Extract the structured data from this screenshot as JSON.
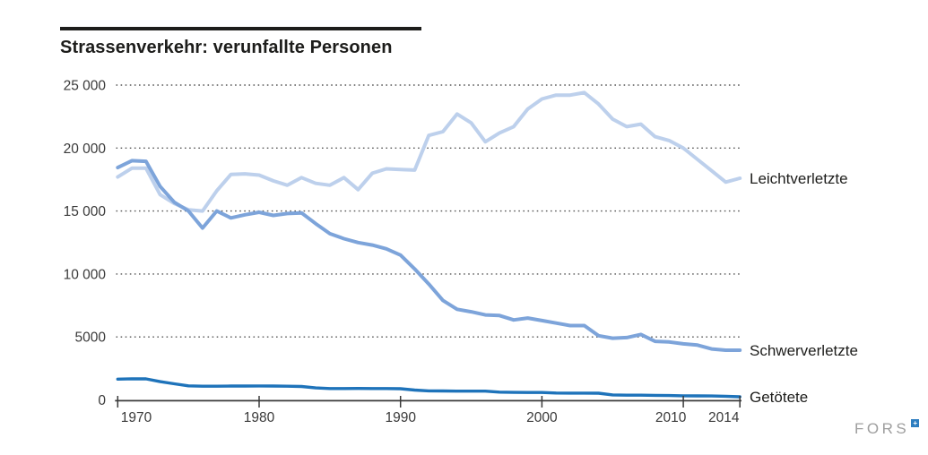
{
  "header": {
    "title": "Strassenverkehr: verunfallte Personen"
  },
  "footer": {
    "logo_text": "FORS"
  },
  "chart_data": {
    "type": "line",
    "title": "Strassenverkehr: verunfallte Personen",
    "grid": "horizontal-dotted",
    "legend_position": "right-of-line-ends",
    "ylim": [
      0,
      25000
    ],
    "xlim": [
      1970,
      2014
    ],
    "x": [
      1970,
      1971,
      1972,
      1973,
      1974,
      1975,
      1976,
      1977,
      1978,
      1979,
      1980,
      1981,
      1982,
      1983,
      1984,
      1985,
      1986,
      1987,
      1988,
      1989,
      1990,
      1991,
      1992,
      1993,
      1994,
      1995,
      1996,
      1997,
      1998,
      1999,
      2000,
      2001,
      2002,
      2003,
      2004,
      2005,
      2006,
      2007,
      2008,
      2009,
      2010,
      2011,
      2012,
      2013,
      2014
    ],
    "series": [
      {
        "name": "Leichtverletzte",
        "color": "#bdd0ec",
        "values": [
          17700,
          18400,
          18400,
          16300,
          15600,
          15100,
          15000,
          16600,
          17900,
          17950,
          17850,
          17400,
          17050,
          17650,
          17200,
          17050,
          17650,
          16700,
          18000,
          18350,
          18300,
          18250,
          21000,
          21300,
          22700,
          22000,
          20500,
          21200,
          21700,
          23100,
          23900,
          24200,
          24200,
          24400,
          23500,
          22300,
          21700,
          21900,
          20900,
          20600,
          20000,
          19100,
          18200,
          17300,
          17600
        ]
      },
      {
        "name": "Schwerverletzte",
        "color": "#7da4da",
        "values": [
          18450,
          19000,
          18950,
          16950,
          15700,
          15000,
          13650,
          15000,
          14450,
          14700,
          14900,
          14650,
          14800,
          14850,
          14000,
          13200,
          12800,
          12500,
          12300,
          12000,
          11500,
          10400,
          9200,
          7900,
          7200,
          7000,
          6750,
          6700,
          6350,
          6500,
          6300,
          6100,
          5900,
          5900,
          5100,
          4900,
          4950,
          5200,
          4650,
          4600,
          4450,
          4350,
          4050,
          3950,
          3950
        ]
      },
      {
        "name": "Getötete",
        "color": "#1e73ba",
        "values": [
          1650,
          1680,
          1670,
          1450,
          1280,
          1120,
          1090,
          1090,
          1100,
          1100,
          1110,
          1100,
          1090,
          1070,
          950,
          900,
          900,
          910,
          900,
          900,
          890,
          780,
          720,
          710,
          700,
          700,
          700,
          620,
          600,
          590,
          590,
          550,
          540,
          540,
          530,
          400,
          380,
          380,
          360,
          350,
          330,
          320,
          310,
          290,
          250
        ]
      }
    ],
    "y_ticks": [
      {
        "value": 0,
        "label": "0"
      },
      {
        "value": 5000,
        "label": "5000"
      },
      {
        "value": 10000,
        "label": "10 000"
      },
      {
        "value": 15000,
        "label": "15 000"
      },
      {
        "value": 20000,
        "label": "20 000"
      },
      {
        "value": 25000,
        "label": "25 000"
      }
    ],
    "x_ticks": [
      {
        "value": 1970,
        "label": "1970"
      },
      {
        "value": 1980,
        "label": "1980"
      },
      {
        "value": 1990,
        "label": "1990"
      },
      {
        "value": 2000,
        "label": "2000"
      },
      {
        "value": 2010,
        "label": "2010"
      },
      {
        "value": 2014,
        "label": "2014"
      }
    ]
  }
}
